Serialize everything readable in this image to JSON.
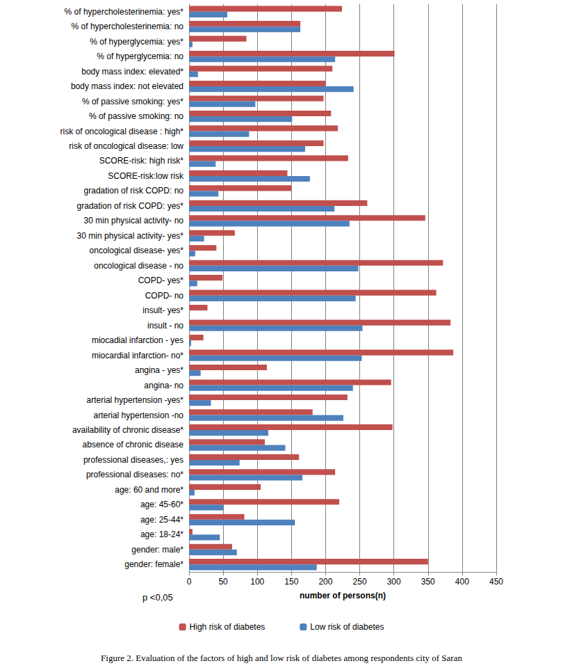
{
  "chart_data": {
    "type": "bar",
    "orientation": "horizontal",
    "title": "Figure 2. Evaluation of the factors of high and low risk of diabetes among respondents city of Saran",
    "xlabel": "number of persons(n)",
    "annotations": [
      "p <0,05"
    ],
    "categories": [
      "% of hypercholesterinemia: yes*",
      "% of hypercholesterinemia: no",
      "% of hyperglycemia: yes*",
      "% of hyperglycemia: no",
      "body mass index: elevated*",
      "body mass index: not elevated",
      "% of passive smoking: yes*",
      "% of passive smoking: no",
      "risk of oncological disease : high*",
      "risk of oncological disease: low",
      "SCORE-risk: high risk*",
      "SCORE-risk:low risk",
      "gradation of risk COPD: no",
      "gradation of risk COPD: yes*",
      "30 min physical activity- no",
      "30 min physical activity- yes*",
      "oncological disease- yes*",
      "oncological disease - no",
      "COPD- yes*",
      "COPD- no",
      "insult- yes*",
      "insult - no",
      "miocadial infarction - yes",
      "miocardial infarction- no*",
      "angina - yes*",
      "angina- no",
      "arterial hypertension -yes*",
      "arterial hypertension -no",
      "availability of chronic disease*",
      "absence of chronic disease",
      "professional diseases,: yes",
      "professional diseases: no*",
      "age: 60 and more*",
      "age: 45-60*",
      "age: 25-44*",
      "age: 18-24*",
      "gender: male*",
      "gender: female*"
    ],
    "series": [
      {
        "name": "High risk of diabetes",
        "color": "#c0504d",
        "values": [
          224,
          163,
          84,
          301,
          210,
          200,
          197,
          208,
          218,
          197,
          233,
          144,
          150,
          261,
          346,
          67,
          40,
          372,
          49,
          362,
          27,
          383,
          21,
          387,
          114,
          296,
          232,
          181,
          298,
          111,
          161,
          214,
          105,
          220,
          81,
          5,
          63,
          350
        ]
      },
      {
        "name": "Low risk of diabetes",
        "color": "#4f81bd",
        "values": [
          56,
          163,
          5,
          214,
          13,
          241,
          97,
          151,
          88,
          170,
          39,
          177,
          43,
          213,
          235,
          22,
          9,
          248,
          12,
          244,
          1,
          254,
          3,
          253,
          17,
          240,
          32,
          226,
          116,
          141,
          74,
          166,
          8,
          50,
          155,
          45,
          70,
          187
        ]
      }
    ],
    "xlim": [
      0,
      450
    ],
    "xticks": [
      0,
      50,
      100,
      150,
      200,
      250,
      300,
      350,
      400,
      450
    ],
    "grid": true,
    "legend": "bottom"
  }
}
